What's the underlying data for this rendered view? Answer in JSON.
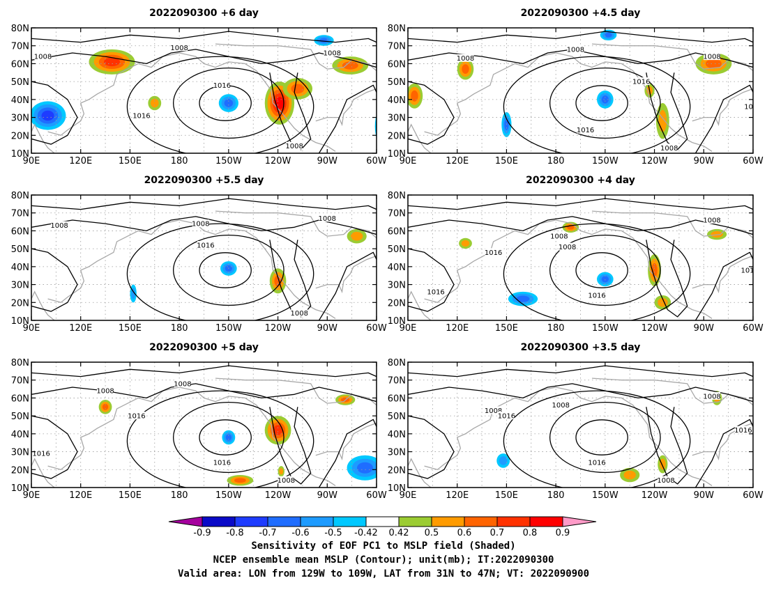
{
  "panels": [
    {
      "title": "2022090300  +6 day",
      "blobs": [
        {
          "lon": 139,
          "lat": 61,
          "rx": 14,
          "ry": 7,
          "level": 0.72
        },
        {
          "lon": -119,
          "lat": 38,
          "rx": 9,
          "ry": 12,
          "level": 0.82
        },
        {
          "lon": -108,
          "lat": 46,
          "rx": 9,
          "ry": 6,
          "level": 0.6
        },
        {
          "lon": -76,
          "lat": 59,
          "rx": 11,
          "ry": 5,
          "level": 0.62
        },
        {
          "lon": -150,
          "lat": 38,
          "rx": 6,
          "ry": 5,
          "level": -0.65
        },
        {
          "lon": 100,
          "lat": 31,
          "rx": 11,
          "ry": 8,
          "level": -0.72
        },
        {
          "lon": -55,
          "lat": 25,
          "rx": 6,
          "ry": 12,
          "level": -0.7
        },
        {
          "lon": -92,
          "lat": 73,
          "rx": 6,
          "ry": 3,
          "level": -0.65
        },
        {
          "lon": 165,
          "lat": 38,
          "rx": 4,
          "ry": 4,
          "level": 0.5
        }
      ],
      "labels": [
        {
          "lon": 97,
          "lat": 64,
          "text": "1008"
        },
        {
          "lon": -180,
          "lat": 69,
          "text": "1008"
        },
        {
          "lon": -87,
          "lat": 66,
          "text": "1008"
        },
        {
          "lon": -154,
          "lat": 48,
          "text": "1016"
        },
        {
          "lon": 157,
          "lat": 31,
          "text": "1016"
        },
        {
          "lon": -110,
          "lat": 14,
          "text": "1008"
        }
      ]
    },
    {
      "title": "2022090300  +4.5 day",
      "blobs": [
        {
          "lon": 125,
          "lat": 57,
          "rx": 5,
          "ry": 6,
          "level": 0.6
        },
        {
          "lon": 94,
          "lat": 42,
          "rx": 5,
          "ry": 7,
          "level": 0.6
        },
        {
          "lon": -84,
          "lat": 60,
          "rx": 11,
          "ry": 6,
          "level": 0.65
        },
        {
          "lon": -123,
          "lat": 45,
          "rx": 3,
          "ry": 4,
          "level": 0.55
        },
        {
          "lon": -150,
          "lat": 40,
          "rx": 5,
          "ry": 5,
          "level": -0.6
        },
        {
          "lon": 150,
          "lat": 26,
          "rx": 3,
          "ry": 7,
          "level": -0.6
        },
        {
          "lon": -50,
          "lat": 28,
          "rx": 6,
          "ry": 11,
          "level": -0.7
        },
        {
          "lon": -148,
          "lat": 76,
          "rx": 5,
          "ry": 3,
          "level": -0.6
        },
        {
          "lon": -115,
          "lat": 28,
          "rx": 4,
          "ry": 10,
          "level": 0.5
        }
      ],
      "labels": [
        {
          "lon": 125,
          "lat": 63,
          "text": "1008"
        },
        {
          "lon": -168,
          "lat": 68,
          "text": "1008"
        },
        {
          "lon": -85,
          "lat": 64,
          "text": "1008"
        },
        {
          "lon": -128,
          "lat": 50,
          "text": "1016"
        },
        {
          "lon": -60,
          "lat": 36,
          "text": "1016"
        },
        {
          "lon": -162,
          "lat": 23,
          "text": "1016"
        },
        {
          "lon": -111,
          "lat": 13,
          "text": "1008"
        }
      ]
    },
    {
      "title": "2022090300  +5.5 day",
      "blobs": [
        {
          "lon": -120,
          "lat": 32,
          "rx": 5,
          "ry": 7,
          "level": 0.6
        },
        {
          "lon": -72,
          "lat": 57,
          "rx": 6,
          "ry": 4,
          "level": 0.55
        },
        {
          "lon": -150,
          "lat": 39,
          "rx": 5,
          "ry": 4,
          "level": -0.6
        },
        {
          "lon": -52,
          "lat": 22,
          "rx": 5,
          "ry": 8,
          "level": -0.6
        },
        {
          "lon": 152,
          "lat": 25,
          "rx": 2,
          "ry": 5,
          "level": -0.55
        }
      ],
      "labels": [
        {
          "lon": 107,
          "lat": 63,
          "text": "1008"
        },
        {
          "lon": -167,
          "lat": 64,
          "text": "1008"
        },
        {
          "lon": -90,
          "lat": 67,
          "text": "1008"
        },
        {
          "lon": -164,
          "lat": 52,
          "text": "1016"
        },
        {
          "lon": -107,
          "lat": 14,
          "text": "1008"
        }
      ]
    },
    {
      "title": "2022090300  +4 day",
      "blobs": [
        {
          "lon": -120,
          "lat": 38,
          "rx": 4,
          "ry": 9,
          "level": 0.6
        },
        {
          "lon": -171,
          "lat": 62,
          "rx": 5,
          "ry": 3,
          "level": 0.6
        },
        {
          "lon": 125,
          "lat": 53,
          "rx": 4,
          "ry": 3,
          "level": 0.55
        },
        {
          "lon": -82,
          "lat": 58,
          "rx": 6,
          "ry": 3,
          "level": 0.55
        },
        {
          "lon": -150,
          "lat": 33,
          "rx": 5,
          "ry": 4,
          "level": -0.6
        },
        {
          "lon": 160,
          "lat": 22,
          "rx": 9,
          "ry": 4,
          "level": -0.6
        },
        {
          "lon": -52,
          "lat": 20,
          "rx": 8,
          "ry": 8,
          "level": -0.7
        },
        {
          "lon": -115,
          "lat": 20,
          "rx": 5,
          "ry": 4,
          "level": 0.5
        }
      ],
      "labels": [
        {
          "lon": 107,
          "lat": 26,
          "text": "1016"
        },
        {
          "lon": 142,
          "lat": 48,
          "text": "1016"
        },
        {
          "lon": -173,
          "lat": 51,
          "text": "1008"
        },
        {
          "lon": -178,
          "lat": 57,
          "text": "1008"
        },
        {
          "lon": -85,
          "lat": 66,
          "text": "1008"
        },
        {
          "lon": -62,
          "lat": 38,
          "text": "1016"
        },
        {
          "lon": -155,
          "lat": 24,
          "text": "1016"
        }
      ]
    },
    {
      "title": "2022090300  +5 day",
      "blobs": [
        {
          "lon": -120,
          "lat": 42,
          "rx": 8,
          "ry": 8,
          "level": 0.75
        },
        {
          "lon": -79,
          "lat": 59,
          "rx": 6,
          "ry": 3,
          "level": 0.6
        },
        {
          "lon": 135,
          "lat": 55,
          "rx": 4,
          "ry": 4,
          "level": 0.6
        },
        {
          "lon": -143,
          "lat": 14,
          "rx": 8,
          "ry": 3,
          "level": 0.6
        },
        {
          "lon": -150,
          "lat": 38,
          "rx": 4,
          "ry": 4,
          "level": -0.6
        },
        {
          "lon": -67,
          "lat": 21,
          "rx": 11,
          "ry": 7,
          "level": -0.65
        },
        {
          "lon": -118,
          "lat": 19,
          "rx": 2,
          "ry": 3,
          "level": 0.5
        }
      ],
      "labels": [
        {
          "lon": 135,
          "lat": 64,
          "text": "1008"
        },
        {
          "lon": -178,
          "lat": 68,
          "text": "1008"
        },
        {
          "lon": -115,
          "lat": 14,
          "text": "1008"
        },
        {
          "lon": -154,
          "lat": 24,
          "text": "1016"
        },
        {
          "lon": 96,
          "lat": 29,
          "text": "1016"
        },
        {
          "lon": 154,
          "lat": 50,
          "text": "1016"
        }
      ]
    },
    {
      "title": "2022090300  +3.5 day",
      "blobs": [
        {
          "lon": -135,
          "lat": 17,
          "rx": 6,
          "ry": 4,
          "level": 0.55
        },
        {
          "lon": -82,
          "lat": 60,
          "rx": 3,
          "ry": 4,
          "level": 0.5
        },
        {
          "lon": -52,
          "lat": 18,
          "rx": 3,
          "ry": 6,
          "level": -0.6
        },
        {
          "lon": 148,
          "lat": 25,
          "rx": 4,
          "ry": 4,
          "level": -0.55
        },
        {
          "lon": -115,
          "lat": 23,
          "rx": 3,
          "ry": 5,
          "level": 0.5
        }
      ],
      "labels": [
        {
          "lon": 142,
          "lat": 53,
          "text": "1008"
        },
        {
          "lon": -177,
          "lat": 56,
          "text": "1008"
        },
        {
          "lon": -85,
          "lat": 61,
          "text": "1008"
        },
        {
          "lon": -155,
          "lat": 24,
          "text": "1016"
        },
        {
          "lon": 150,
          "lat": 50,
          "text": "1016"
        },
        {
          "lon": -113,
          "lat": 14,
          "text": "1008"
        },
        {
          "lon": -66,
          "lat": 42,
          "text": "1016"
        }
      ]
    }
  ],
  "axes": {
    "lon_ticks": [
      "90E",
      "120E",
      "150E",
      "180",
      "150W",
      "120W",
      "90W",
      "60W"
    ],
    "lat_ticks": [
      "10N",
      "20N",
      "30N",
      "40N",
      "50N",
      "60N",
      "70N",
      "80N"
    ],
    "lon_range": [
      90,
      300
    ],
    "lat_range": [
      10,
      80
    ]
  },
  "colorbar": {
    "ticks": [
      "-0.9",
      "-0.8",
      "-0.7",
      "-0.6",
      "-0.5",
      "-0.42",
      "0.42",
      "0.5",
      "0.6",
      "0.7",
      "0.8",
      "0.9"
    ],
    "colors": [
      "#a5009e",
      "#0a0ac8",
      "#1e3cff",
      "#1f6dff",
      "#1d9bff",
      "#00c8ff",
      "#ffffff",
      "#9bcc32",
      "#ff9b00",
      "#ff6400",
      "#ff3200",
      "#ff0000",
      "#ff9bc8"
    ]
  },
  "footer": {
    "line1": "Sensitivity of EOF PC1 to MSLP field (Shaded)",
    "line2": "NCEP ensemble mean MSLP (Contour); unit(mb); IT:2022090300",
    "line3": "Valid area: LON from 129W to 109W, LAT from 31N to 47N; VT: 2022090900"
  }
}
